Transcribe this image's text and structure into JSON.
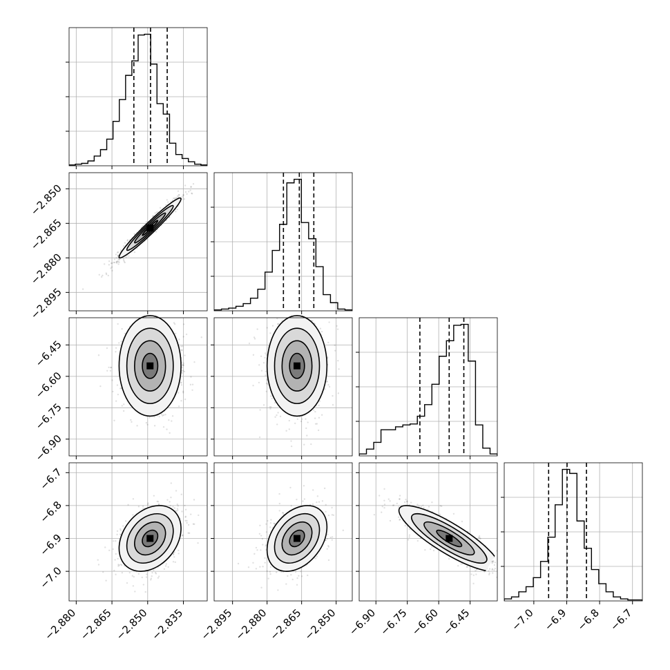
{
  "chart_data": {
    "type": "corner",
    "n_params": 4,
    "params": [
      {
        "range": [
          -2.883,
          -2.825
        ],
        "ticks": [
          "−2.880",
          "−2.865",
          "−2.850",
          "−2.835"
        ],
        "tick_values": [
          -2.88,
          -2.865,
          -2.85,
          -2.835
        ]
      },
      {
        "range": [
          -2.903,
          -2.843
        ],
        "ticks": [
          "−2.895",
          "−2.880",
          "−2.865",
          "−2.850"
        ],
        "tick_values": [
          -2.895,
          -2.88,
          -2.865,
          -2.85
        ]
      },
      {
        "range": [
          -6.98,
          -6.32
        ],
        "ticks": [
          "−6.90",
          "−6.75",
          "−6.60",
          "−6.45"
        ],
        "tick_values": [
          -6.9,
          -6.75,
          -6.6,
          -6.45
        ]
      },
      {
        "range": [
          -7.09,
          -6.67
        ],
        "ticks": [
          "−7.0",
          "−6.9",
          "−6.8",
          "−6.7"
        ],
        "tick_values": [
          -7.0,
          -6.9,
          -6.8,
          -6.7
        ]
      }
    ],
    "marginals": [
      {
        "quantiles": [
          -2.8558,
          -2.8488,
          -2.8418
        ],
        "counts": [
          1,
          2,
          3,
          6,
          12,
          20,
          33,
          55,
          82,
          112,
          130,
          162,
          163,
          126,
          77,
          64,
          28,
          14,
          9,
          5,
          2,
          1
        ]
      },
      {
        "quantiles": [
          -2.8729,
          -2.866,
          -2.8597
        ],
        "counts": [
          1,
          2,
          3,
          5,
          8,
          14,
          24,
          43,
          67,
          96,
          142,
          146,
          98,
          80,
          49,
          18,
          9,
          2,
          1
        ]
      },
      {
        "quantiles": [
          -6.69,
          -6.55,
          -6.48
        ],
        "counts": [
          2,
          7,
          14,
          27,
          27,
          30,
          32,
          33,
          41,
          53,
          74,
          103,
          119,
          135,
          136,
          98,
          32,
          8,
          2
        ]
      },
      {
        "quantiles": [
          -6.955,
          -6.899,
          -6.84
        ],
        "counts": [
          2,
          4,
          9,
          14,
          23,
          39,
          63,
          95,
          130,
          126,
          79,
          52,
          31,
          17,
          9,
          4,
          2,
          1,
          1
        ]
      }
    ],
    "joint": [
      {
        "x": 0,
        "y": 1,
        "mean": [
          -2.849,
          -2.867
        ],
        "sd": [
          0.0065,
          0.0065
        ],
        "rho": 0.97
      },
      {
        "x": 0,
        "y": 2,
        "mean": [
          -2.849,
          -6.55
        ],
        "sd": [
          0.0065,
          0.12
        ],
        "rho": 0.0
      },
      {
        "x": 1,
        "y": 2,
        "mean": [
          -2.867,
          -6.55
        ],
        "sd": [
          0.0065,
          0.12
        ],
        "rho": 0.0
      },
      {
        "x": 0,
        "y": 3,
        "mean": [
          -2.849,
          -6.9
        ],
        "sd": [
          0.0065,
          0.05
        ],
        "rho": 0.3
      },
      {
        "x": 1,
        "y": 3,
        "mean": [
          -2.867,
          -6.9
        ],
        "sd": [
          0.0065,
          0.05
        ],
        "rho": 0.35
      },
      {
        "x": 2,
        "y": 3,
        "mean": [
          -6.55,
          -6.9
        ],
        "sd": [
          0.12,
          0.05
        ],
        "rho": -0.85
      }
    ],
    "grid": true
  }
}
